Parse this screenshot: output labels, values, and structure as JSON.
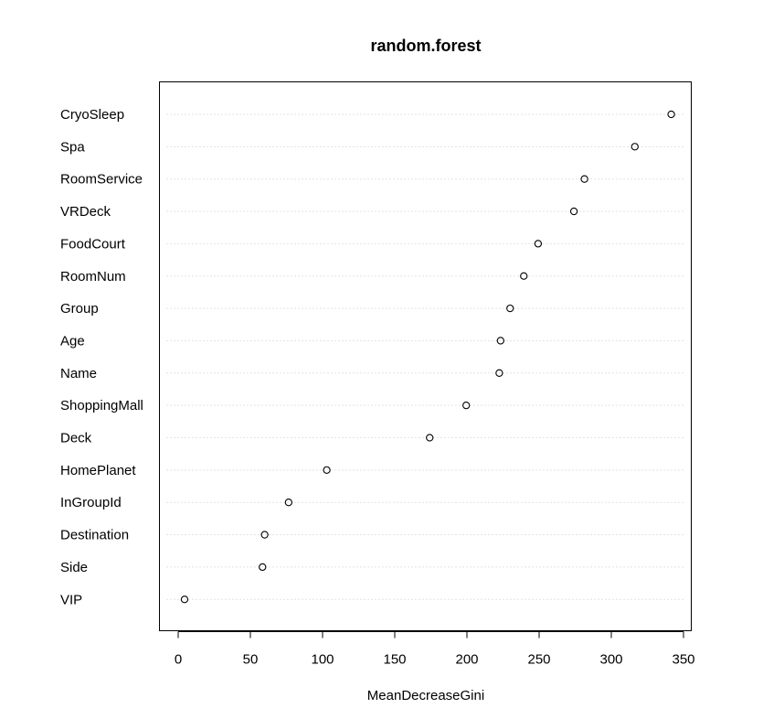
{
  "chart_data": {
    "type": "scatter",
    "title": "random.forest",
    "xlabel": "MeanDecreaseGini",
    "ylabel": "",
    "xlim": [
      0,
      350
    ],
    "xticks": [
      "0",
      "50",
      "100",
      "150",
      "200",
      "250",
      "300",
      "350"
    ],
    "grid": "dotted horizontal guides",
    "categories": [
      "CryoSleep",
      "Spa",
      "RoomService",
      "VRDeck",
      "FoodCourt",
      "RoomNum",
      "Group",
      "Age",
      "Name",
      "ShoppingMall",
      "Deck",
      "HomePlanet",
      "InGroupId",
      "Destination",
      "Side",
      "VIP"
    ],
    "values": [
      341.5,
      316.3,
      281.4,
      274.1,
      249.3,
      239.4,
      229.9,
      223.3,
      222.4,
      199.5,
      174.2,
      102.9,
      76.5,
      59.9,
      58.4,
      4.4
    ]
  }
}
